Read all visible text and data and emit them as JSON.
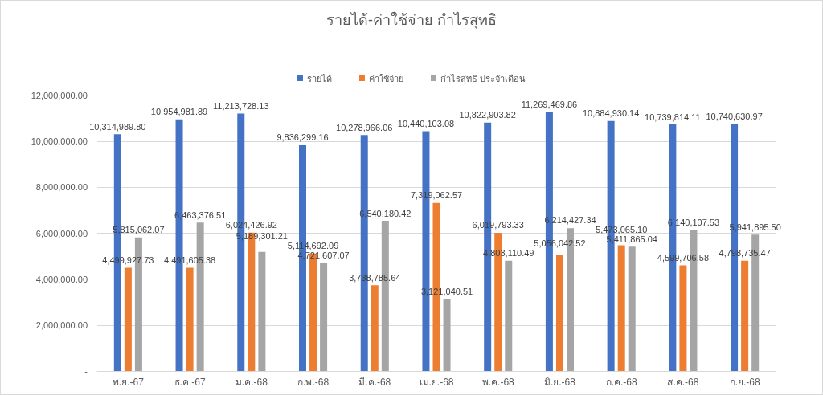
{
  "chart_data": {
    "type": "bar",
    "title": "รายได้-ค่าใช้จ่าย กำไรสุทธิ",
    "categories": [
      "พ.ย.-67",
      "ธ.ค.-67",
      "ม.ค.-68",
      "ก.พ.-68",
      "มี.ค.-68",
      "เม.ย.-68",
      "พ.ค.-68",
      "มิ.ย.-68",
      "ก.ค.-68",
      "ส.ค.-68",
      "ก.ย.-68"
    ],
    "series": [
      {
        "name": "รายได้",
        "color": "#4472c4",
        "values": [
          10314989.8,
          10954981.89,
          11213728.13,
          9836299.16,
          10278966.06,
          10440103.08,
          10822903.82,
          11269469.86,
          10884930.14,
          10739814.11,
          10740630.97
        ],
        "value_labels": [
          "10,314,989.80",
          "10,954,981.89",
          "11,213,728.13",
          "9,836,299.16",
          "10,278,966.06",
          "10,440,103.08",
          "10,822,903.82",
          "11,269,469.86",
          "10,884,930.14",
          "10,739,814.11",
          "10,740,630.97"
        ]
      },
      {
        "name": "ค่าใช้จ่าย",
        "color": "#ed7d31",
        "values": [
          4499927.73,
          4491605.38,
          6024426.92,
          5114692.09,
          3738785.64,
          7319062.57,
          6019793.33,
          5056042.52,
          5473065.1,
          4599706.58,
          4798735.47
        ],
        "value_labels": [
          "4,499,927.73",
          "4,491,605.38",
          "6,024,426.92",
          "5,114,692.09",
          "3,738,785.64",
          "7,319,062.57",
          "6,019,793.33",
          "5,056,042.52",
          "5,473,065.10",
          "4,599,706.58",
          "4,798,735.47"
        ]
      },
      {
        "name": "กำไรสุทธิ ประจำเดือน",
        "color": "#a5a5a5",
        "values": [
          5815062.07,
          6463376.51,
          5189301.21,
          4721607.07,
          6540180.42,
          3121040.51,
          4803110.49,
          6214427.34,
          5411865.04,
          6140107.53,
          5941895.5
        ],
        "value_labels": [
          "5,815,062.07",
          "6,463,376.51",
          "5,189,301.21",
          "4,721,607.07",
          "6,540,180.42",
          "3,121,040.51",
          "4,803,110.49",
          "6,214,427.34",
          "5,411,865.04",
          "6,140,107.53",
          "5,941,895.50"
        ]
      }
    ],
    "ylim": [
      0,
      12000000
    ],
    "yticks": [
      {
        "value": 0,
        "label": "-"
      },
      {
        "value": 2000000,
        "label": "2,000,000.00"
      },
      {
        "value": 4000000,
        "label": "4,000,000.00"
      },
      {
        "value": 6000000,
        "label": "6,000,000.00"
      },
      {
        "value": 8000000,
        "label": "8,000,000.00"
      },
      {
        "value": 10000000,
        "label": "10,000,000.00"
      },
      {
        "value": 12000000,
        "label": "12,000,000.00"
      }
    ],
    "grid": "y",
    "legend": "top"
  }
}
